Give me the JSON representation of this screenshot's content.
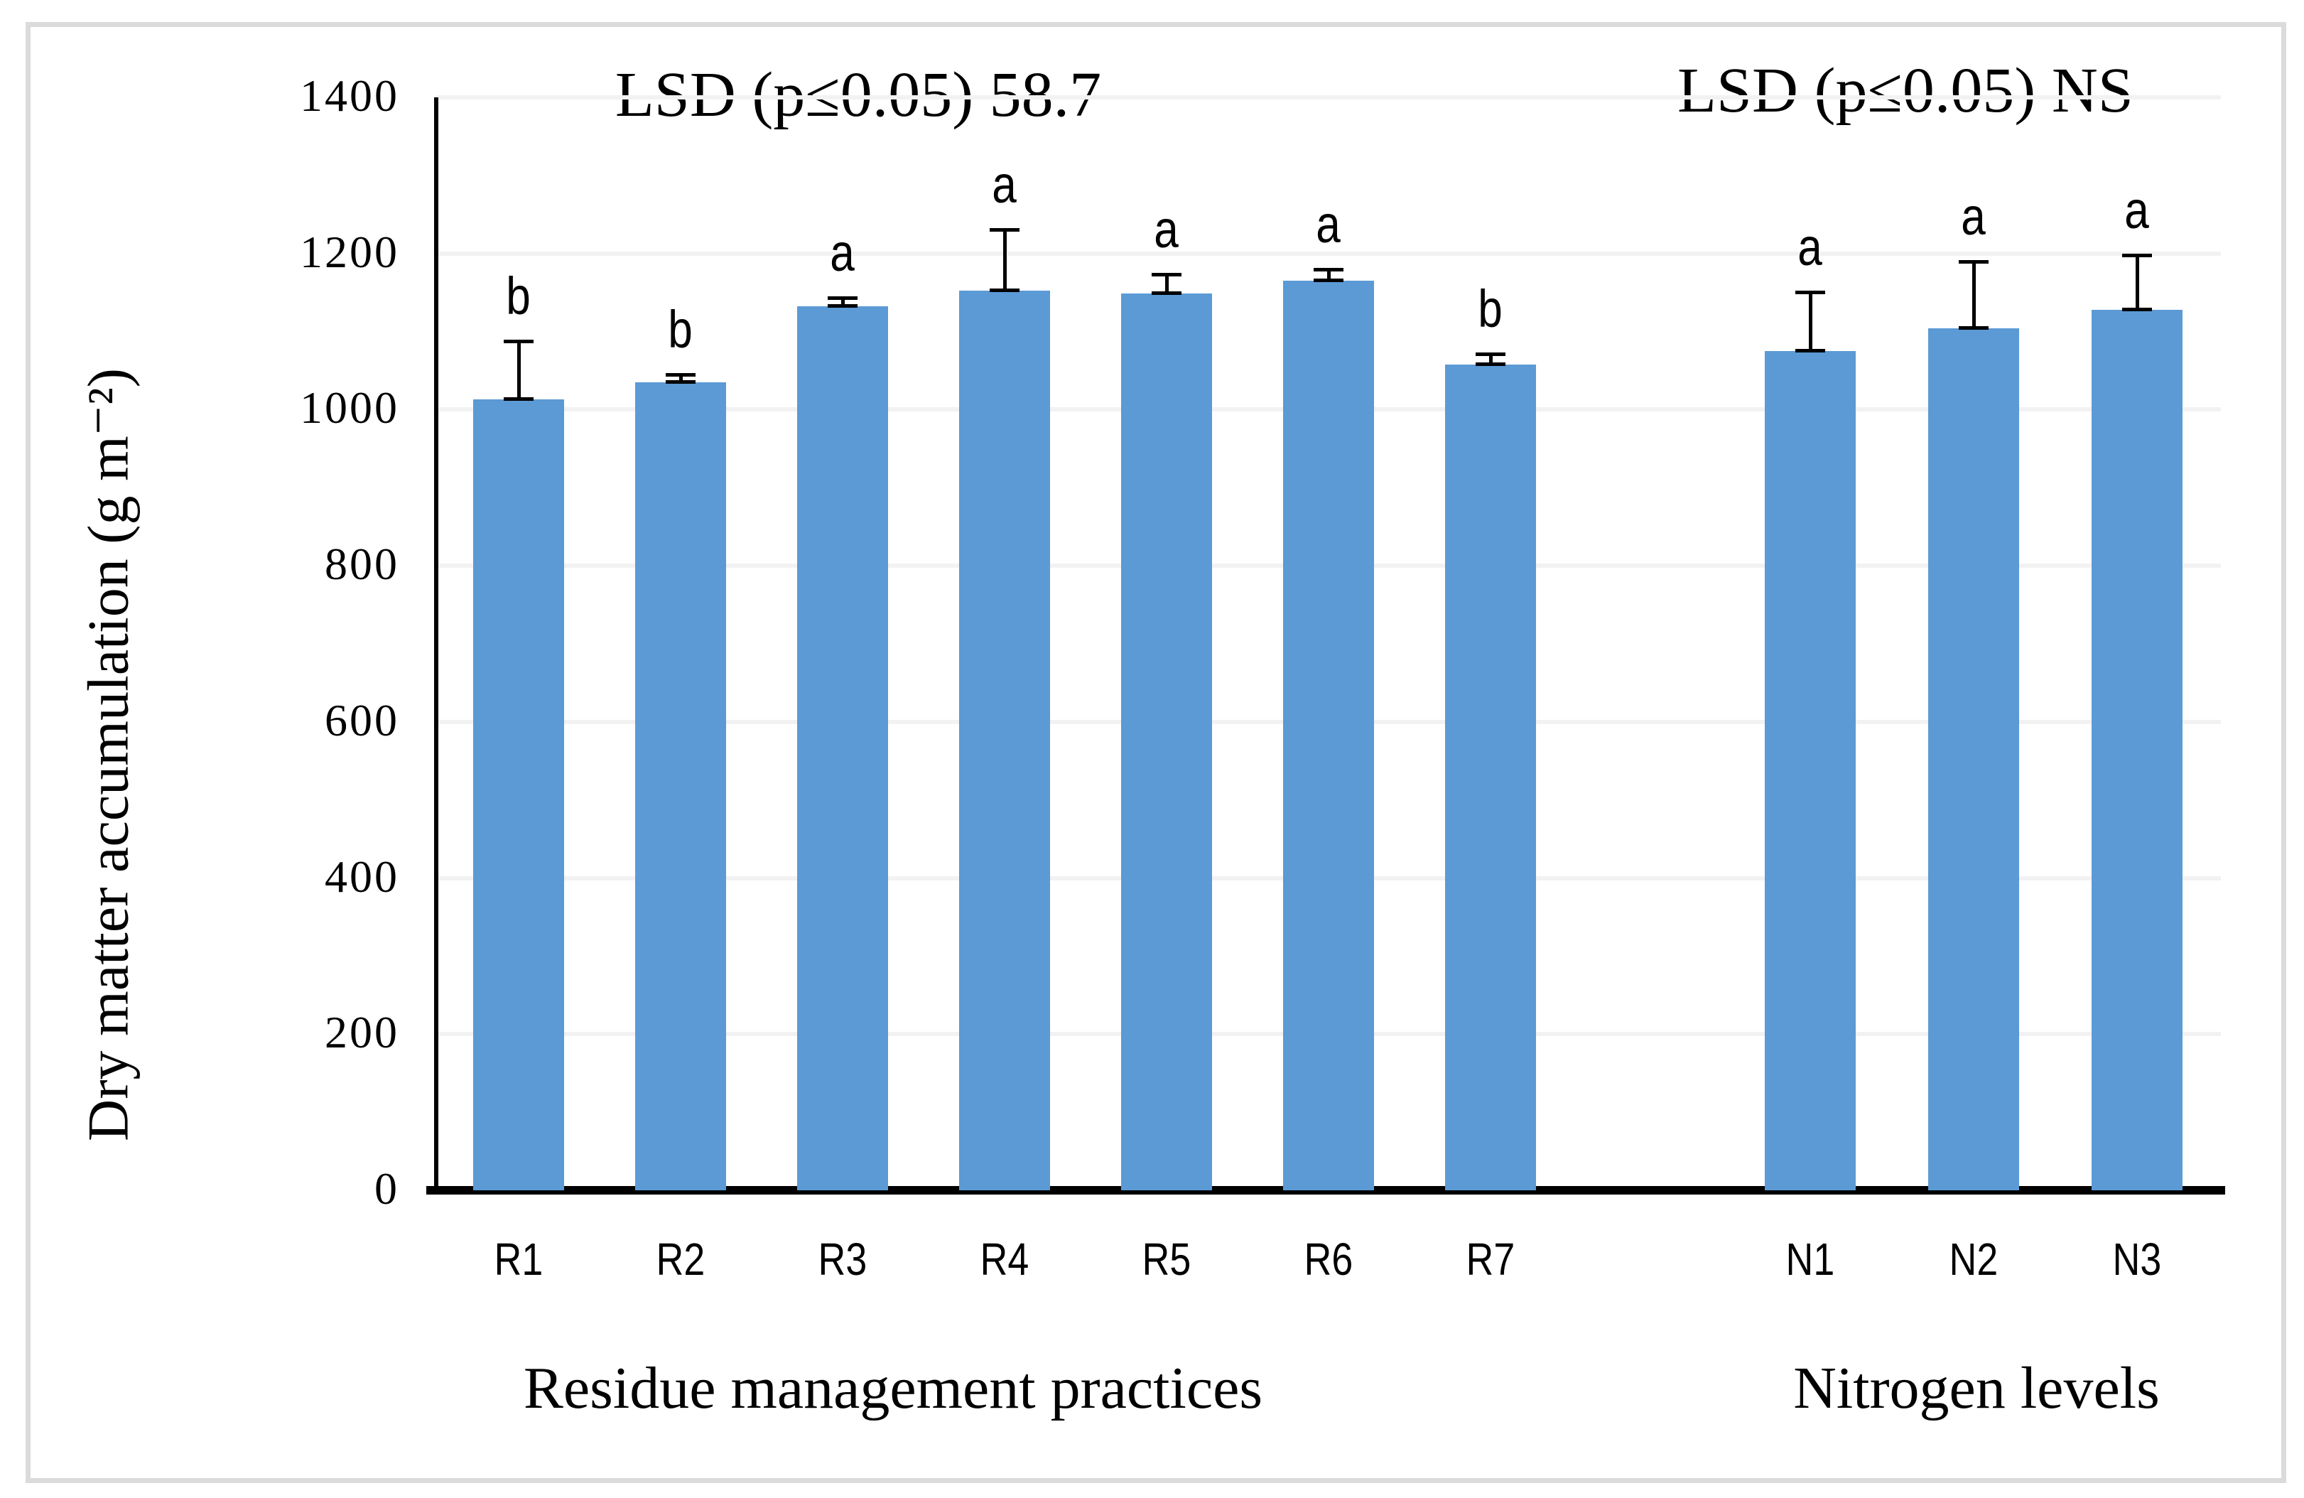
{
  "figure": {
    "colors": {
      "bar": "#5b9ad5",
      "gridline": "#f2f2f2",
      "axis": "#000000",
      "frame_border": "#dbdbdb",
      "background": "#ffffff"
    }
  },
  "chart_data": {
    "type": "bar",
    "title": "",
    "xlabel": "",
    "ylabel": "Dry matter  accumulation (g m⁻²)",
    "ylim": [
      0,
      1400
    ],
    "yticks": [
      0,
      200,
      400,
      600,
      800,
      1000,
      1200,
      1400
    ],
    "grid": "horizontal light gray lines at each 200-unit step",
    "legend": "none",
    "bar_color": "#5b9ad5",
    "error_bars": "plus direction only, black, capped",
    "groups": [
      {
        "label": "Residue management practices",
        "lsd_annotation": "LSD (p≤0.05) 58.7",
        "categories": [
          "R1",
          "R2",
          "R3",
          "R4",
          "R5",
          "R6",
          "R7"
        ],
        "values": [
          1013,
          1035,
          1132,
          1152,
          1149,
          1165,
          1058
        ],
        "errors_plus": [
          75,
          10,
          11,
          79,
          24,
          15,
          13
        ],
        "sig_letters": [
          "b",
          "b",
          "a",
          "a",
          "a",
          "a",
          "b"
        ]
      },
      {
        "label": "Nitrogen levels",
        "lsd_annotation": "LSD (p≤0.05) NS",
        "categories": [
          "N1",
          "N2",
          "N3"
        ],
        "values": [
          1075,
          1104,
          1128
        ],
        "errors_plus": [
          76,
          86,
          70
        ],
        "sig_letters": [
          "a",
          "a",
          "a"
        ]
      }
    ]
  }
}
